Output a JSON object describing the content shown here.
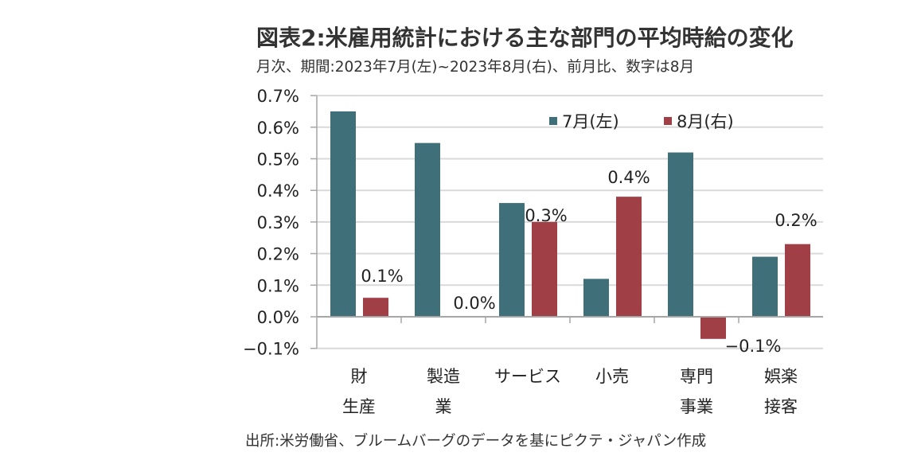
{
  "chart_data": {
    "type": "bar",
    "title": "図表2:米雇用統計における主な部門の平均時給の変化",
    "subtitle": "月次、期間:2023年7月(左)~2023年8月(右)、前月比、数字は8月",
    "source": "出所:米労働省、ブルームバーグのデータを基にピクテ・ジャパン作成",
    "xlabel": "",
    "ylabel": "",
    "ylim": [
      -0.1,
      0.7
    ],
    "yticks": [
      {
        "value": 0.7,
        "label": "0.7%"
      },
      {
        "value": 0.6,
        "label": "0.6%"
      },
      {
        "value": 0.5,
        "label": "0.5%"
      },
      {
        "value": 0.4,
        "label": "0.4%"
      },
      {
        "value": 0.3,
        "label": "0.3%"
      },
      {
        "value": 0.2,
        "label": "0.2%"
      },
      {
        "value": 0.1,
        "label": "0.1%"
      },
      {
        "value": 0.0,
        "label": "0.0%"
      },
      {
        "value": -0.1,
        "label": "−0.1%"
      }
    ],
    "grid": true,
    "legend_position": "top-right",
    "categories": [
      {
        "line1": "財",
        "line2": "生産"
      },
      {
        "line1": "製造",
        "line2": "業"
      },
      {
        "line1": "サービス",
        "line2": ""
      },
      {
        "line1": "小売",
        "line2": ""
      },
      {
        "line1": "専門",
        "line2": "事業"
      },
      {
        "line1": "娯楽",
        "line2": "接客"
      }
    ],
    "series": [
      {
        "name": "7月(左)",
        "color": "#3f6f78",
        "values": [
          0.65,
          0.55,
          0.36,
          0.12,
          0.52,
          0.19
        ]
      },
      {
        "name": "8月(右)",
        "color": "#a13f47",
        "values": [
          0.06,
          0.0,
          0.3,
          0.38,
          -0.07,
          0.23
        ],
        "data_labels": [
          "0.1%",
          "0.0%",
          "0.3%",
          "0.4%",
          "−0.1%",
          "0.2%"
        ]
      }
    ]
  }
}
